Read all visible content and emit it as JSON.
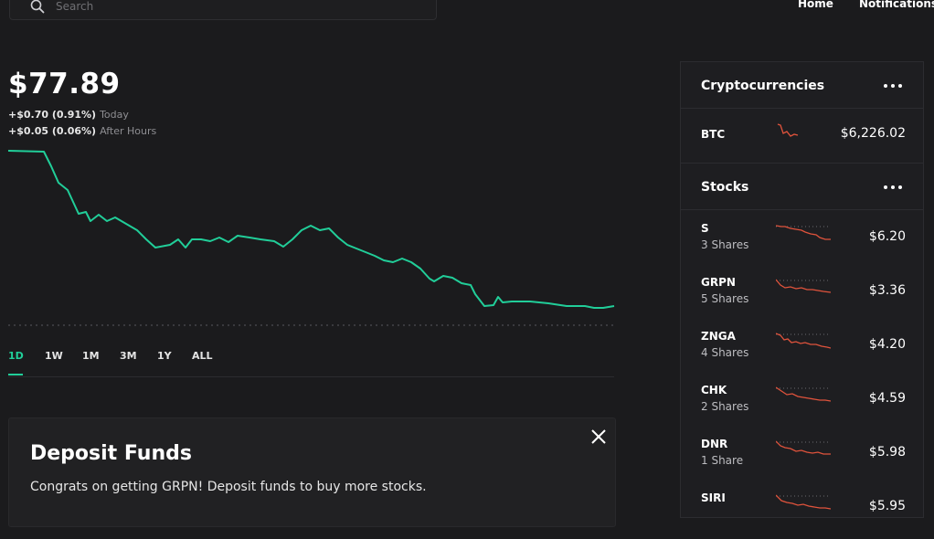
{
  "header": {
    "search_placeholder": "Search",
    "nav": [
      "Home",
      "Notifications"
    ]
  },
  "quote": {
    "price": "$77.89",
    "today_change": "+$0.70 (0.91%)",
    "today_label": "Today",
    "after_change": "+$0.05 (0.06%)",
    "after_label": "After Hours"
  },
  "ranges": {
    "items": [
      "1D",
      "1W",
      "1M",
      "3M",
      "1Y",
      "ALL"
    ],
    "active": "1D"
  },
  "deposit": {
    "title": "Deposit Funds",
    "message": "Congrats on getting GRPN! Deposit funds to buy more stocks."
  },
  "sidebar": {
    "crypto_title": "Cryptocurrencies",
    "crypto": [
      {
        "symbol": "BTC",
        "value": "$6,226.02"
      }
    ],
    "stocks_title": "Stocks",
    "stocks": [
      {
        "symbol": "S",
        "shares": "3 Shares",
        "value": "$6.20"
      },
      {
        "symbol": "GRPN",
        "shares": "5 Shares",
        "value": "$3.36"
      },
      {
        "symbol": "ZNGA",
        "shares": "4 Shares",
        "value": "$4.20"
      },
      {
        "symbol": "CHK",
        "shares": "2 Shares",
        "value": "$4.59"
      },
      {
        "symbol": "DNR",
        "shares": "1 Share",
        "value": "$5.98"
      },
      {
        "symbol": "SIRI",
        "shares": "",
        "value": "$5.95"
      }
    ]
  },
  "colors": {
    "background": "#1b1b1d",
    "accent_green": "#21ce99",
    "sparkline_red": "#e0533c"
  },
  "icons": [
    "search-icon",
    "close-icon",
    "more-icon"
  ]
}
